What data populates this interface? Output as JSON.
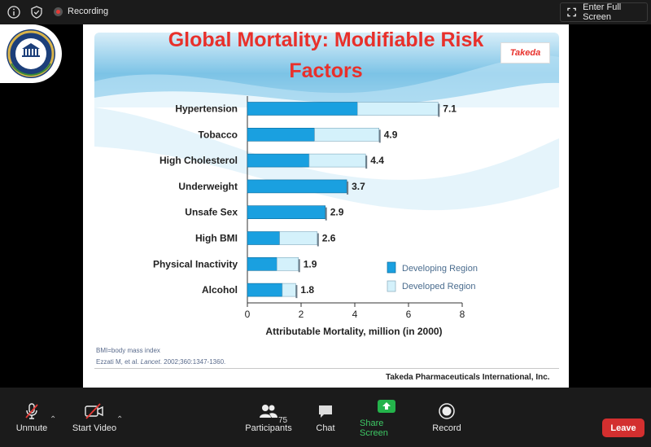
{
  "topbar": {
    "recording_label": "Recording",
    "fullscreen_label": "Enter Full Screen"
  },
  "slide": {
    "title_line1": "Global Mortality: Modifiable Risk",
    "title_line2": "Factors",
    "brand": "Takeda",
    "footnote_bmi": "BMI=body mass index",
    "footnote_ref_pre": "Ezzati M, et al. ",
    "footnote_ref_journal": "Lancet",
    "footnote_ref_post": ". 2002;360:1347-1360.",
    "footer": "Takeda Pharmaceuticals International, Inc."
  },
  "chart_data": {
    "type": "bar",
    "orientation": "horizontal",
    "stacked": true,
    "categories": [
      "Hypertension",
      "Tobacco",
      "High Cholesterol",
      "Underweight",
      "Unsafe Sex",
      "High BMI",
      "Physical Inactivity",
      "Alcohol"
    ],
    "totals": [
      "7.1",
      "4.9",
      "4.4",
      "3.7",
      "2.9",
      "2.6",
      "1.9",
      "1.8"
    ],
    "series": [
      {
        "name": "Developing Region",
        "values": [
          4.1,
          2.5,
          2.3,
          3.7,
          2.9,
          1.2,
          1.1,
          1.3
        ],
        "color": "#1aa0e0"
      },
      {
        "name": "Developed Region",
        "values": [
          3.0,
          2.4,
          2.1,
          0.0,
          0.0,
          1.4,
          0.8,
          0.5
        ],
        "color": "#d4f1fb"
      }
    ],
    "xlim": [
      0,
      8
    ],
    "xticks": [
      "0",
      "2",
      "4",
      "6",
      "8"
    ],
    "xlabel": "Attributable Mortality, million (in 2000)",
    "legend": [
      "Developing Region",
      "Developed Region"
    ],
    "legend_position": "lower-right"
  },
  "bottombar": {
    "unmute": "Unmute",
    "start_video": "Start Video",
    "participants": "Participants",
    "participants_count": "75",
    "chat": "Chat",
    "share_screen": "Share Screen",
    "record": "Record",
    "leave": "Leave"
  },
  "colors": {
    "title": "#e8302b",
    "share_accent": "#24b34b",
    "leave": "#d32f2f"
  }
}
